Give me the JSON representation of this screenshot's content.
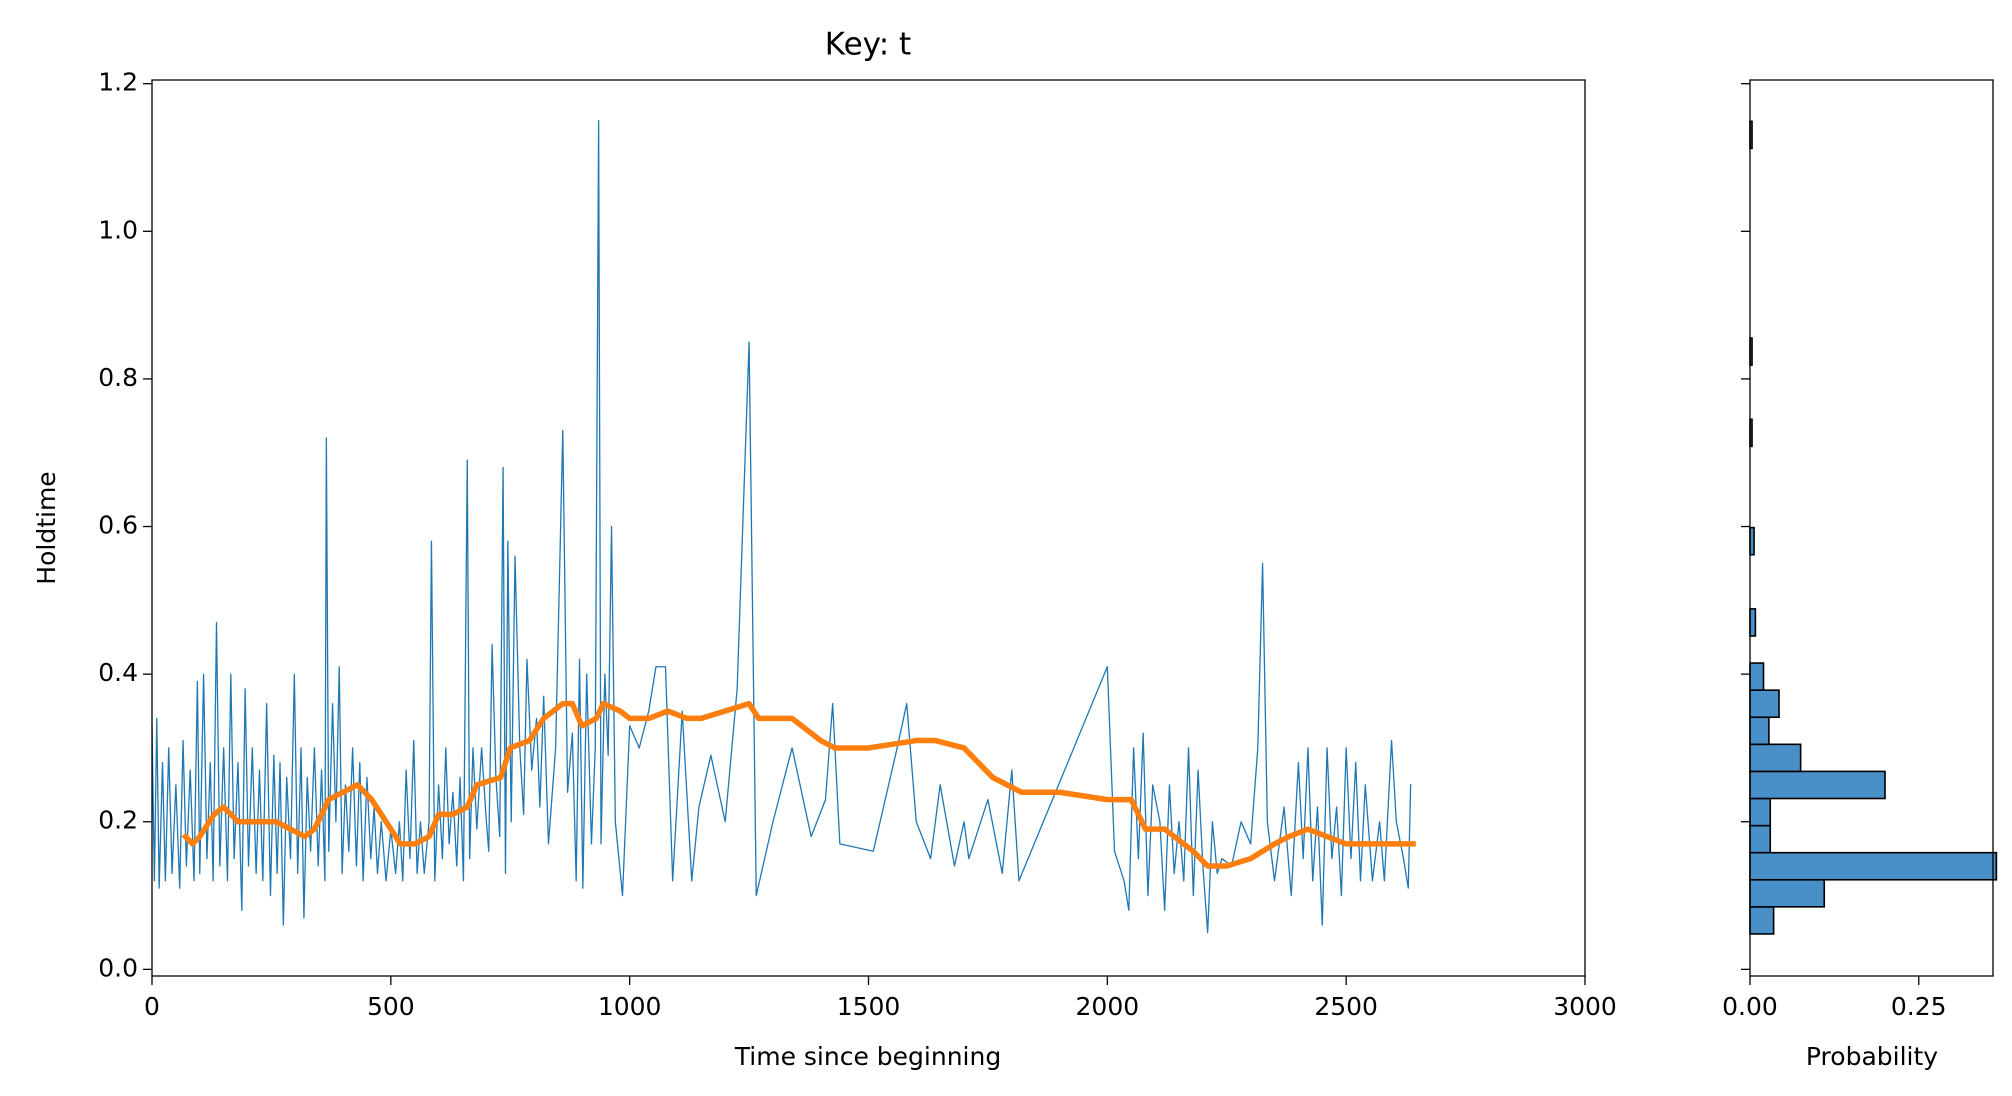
{
  "chart_data": [
    {
      "type": "line",
      "title": "Key: t",
      "xlabel": "Time since beginning",
      "ylabel": "Holdtime",
      "xlim": [
        0,
        3000
      ],
      "xticks": [
        0,
        500,
        1000,
        1500,
        2000,
        2500,
        3000
      ],
      "ylim": [
        -0.009,
        1.205
      ],
      "yticks": [
        {
          "value": 0,
          "label": "0.0"
        },
        0.2,
        0.4,
        0.6,
        0.8,
        {
          "value": 1,
          "label": "1.0"
        },
        1.2
      ],
      "series": [
        {
          "color": "#1f77b4",
          "width": 1.3,
          "x": [
            0,
            5,
            10,
            15,
            22,
            28,
            35,
            42,
            50,
            58,
            65,
            72,
            80,
            88,
            95,
            100,
            108,
            115,
            122,
            128,
            135,
            142,
            150,
            158,
            165,
            172,
            180,
            188,
            195,
            202,
            210,
            218,
            225,
            232,
            240,
            248,
            255,
            262,
            268,
            275,
            282,
            290,
            298,
            305,
            312,
            318,
            325,
            332,
            340,
            348,
            355,
            362,
            365,
            370,
            378,
            385,
            392,
            398,
            405,
            412,
            420,
            428,
            435,
            442,
            450,
            458,
            465,
            472,
            480,
            490,
            500,
            510,
            518,
            525,
            532,
            540,
            548,
            555,
            562,
            570,
            580,
            585,
            592,
            600,
            608,
            615,
            622,
            630,
            638,
            645,
            652,
            660,
            665,
            672,
            680,
            690,
            700,
            705,
            712,
            720,
            728,
            735,
            740,
            745,
            752,
            760,
            770,
            778,
            785,
            795,
            805,
            812,
            820,
            830,
            845,
            860,
            870,
            880,
            888,
            895,
            902,
            910,
            920,
            928,
            935,
            940,
            948,
            955,
            962,
            970,
            985,
            1000,
            1020,
            1040,
            1055,
            1075,
            1090,
            1110,
            1130,
            1145,
            1170,
            1200,
            1225,
            1250,
            1265,
            1300,
            1340,
            1380,
            1410,
            1425,
            1440,
            1510,
            1560,
            1580,
            1600,
            1630,
            1650,
            1680,
            1700,
            1710,
            1750,
            1780,
            1800,
            1815,
            2000,
            2015,
            2035,
            2045,
            2055,
            2065,
            2075,
            2085,
            2095,
            2110,
            2120,
            2130,
            2140,
            2150,
            2160,
            2170,
            2180,
            2190,
            2200,
            2210,
            2220,
            2230,
            2240,
            2260,
            2280,
            2300,
            2315,
            2325,
            2335,
            2350,
            2370,
            2385,
            2400,
            2410,
            2420,
            2430,
            2440,
            2450,
            2460,
            2470,
            2480,
            2490,
            2500,
            2510,
            2520,
            2530,
            2540,
            2555,
            2570,
            2580,
            2595,
            2605,
            2620,
            2630,
            2635
          ],
          "values": [
            0.33,
            0.12,
            0.34,
            0.11,
            0.28,
            0.12,
            0.3,
            0.13,
            0.25,
            0.11,
            0.31,
            0.14,
            0.27,
            0.12,
            0.39,
            0.13,
            0.4,
            0.15,
            0.28,
            0.12,
            0.47,
            0.14,
            0.3,
            0.12,
            0.4,
            0.15,
            0.28,
            0.08,
            0.38,
            0.14,
            0.3,
            0.13,
            0.27,
            0.12,
            0.36,
            0.1,
            0.29,
            0.13,
            0.28,
            0.06,
            0.26,
            0.15,
            0.4,
            0.13,
            0.3,
            0.07,
            0.26,
            0.16,
            0.3,
            0.14,
            0.27,
            0.12,
            0.72,
            0.16,
            0.36,
            0.2,
            0.41,
            0.13,
            0.25,
            0.16,
            0.3,
            0.14,
            0.28,
            0.12,
            0.26,
            0.15,
            0.22,
            0.13,
            0.2,
            0.12,
            0.19,
            0.13,
            0.2,
            0.12,
            0.27,
            0.15,
            0.31,
            0.13,
            0.2,
            0.13,
            0.2,
            0.58,
            0.12,
            0.25,
            0.15,
            0.3,
            0.17,
            0.24,
            0.14,
            0.26,
            0.12,
            0.69,
            0.15,
            0.3,
            0.19,
            0.3,
            0.2,
            0.16,
            0.44,
            0.26,
            0.18,
            0.68,
            0.13,
            0.58,
            0.2,
            0.56,
            0.3,
            0.21,
            0.42,
            0.27,
            0.34,
            0.22,
            0.37,
            0.17,
            0.3,
            0.73,
            0.24,
            0.32,
            0.12,
            0.42,
            0.11,
            0.4,
            0.17,
            0.3,
            1.15,
            0.17,
            0.4,
            0.29,
            0.6,
            0.2,
            0.1,
            0.33,
            0.3,
            0.35,
            0.41,
            0.41,
            0.12,
            0.35,
            0.12,
            0.22,
            0.29,
            0.2,
            0.38,
            0.85,
            0.1,
            0.2,
            0.3,
            0.18,
            0.23,
            0.36,
            0.17,
            0.16,
            0.3,
            0.36,
            0.2,
            0.15,
            0.25,
            0.14,
            0.2,
            0.15,
            0.23,
            0.13,
            0.27,
            0.12,
            0.41,
            0.16,
            0.12,
            0.08,
            0.3,
            0.15,
            0.32,
            0.1,
            0.25,
            0.2,
            0.08,
            0.25,
            0.13,
            0.2,
            0.12,
            0.3,
            0.1,
            0.27,
            0.14,
            0.05,
            0.2,
            0.13,
            0.15,
            0.14,
            0.2,
            0.17,
            0.3,
            0.55,
            0.2,
            0.12,
            0.22,
            0.1,
            0.28,
            0.15,
            0.3,
            0.12,
            0.22,
            0.06,
            0.3,
            0.15,
            0.22,
            0.1,
            0.3,
            0.15,
            0.28,
            0.12,
            0.25,
            0.12,
            0.2,
            0.12,
            0.31,
            0.2,
            0.15,
            0.11,
            0.25
          ]
        },
        {
          "color": "#ff7f0e",
          "width": 5.5,
          "x": [
            70,
            85,
            100,
            130,
            150,
            180,
            200,
            230,
            260,
            290,
            320,
            340,
            370,
            400,
            430,
            460,
            490,
            520,
            550,
            580,
            600,
            630,
            660,
            680,
            730,
            750,
            790,
            820,
            860,
            880,
            900,
            930,
            945,
            980,
            1000,
            1040,
            1080,
            1120,
            1150,
            1200,
            1250,
            1270,
            1340,
            1400,
            1430,
            1500,
            1600,
            1640,
            1700,
            1760,
            1820,
            1900,
            2000,
            2050,
            2080,
            2120,
            2180,
            2210,
            2250,
            2300,
            2350,
            2380,
            2420,
            2460,
            2500,
            2550,
            2600,
            2640
          ],
          "values": [
            0.18,
            0.17,
            0.18,
            0.21,
            0.22,
            0.2,
            0.2,
            0.2,
            0.2,
            0.19,
            0.18,
            0.19,
            0.23,
            0.24,
            0.25,
            0.23,
            0.2,
            0.17,
            0.17,
            0.18,
            0.21,
            0.21,
            0.22,
            0.25,
            0.26,
            0.3,
            0.31,
            0.34,
            0.36,
            0.36,
            0.33,
            0.34,
            0.36,
            0.35,
            0.34,
            0.34,
            0.35,
            0.34,
            0.34,
            0.35,
            0.36,
            0.34,
            0.34,
            0.31,
            0.3,
            0.3,
            0.31,
            0.31,
            0.3,
            0.26,
            0.24,
            0.24,
            0.23,
            0.23,
            0.19,
            0.19,
            0.16,
            0.14,
            0.14,
            0.15,
            0.17,
            0.18,
            0.19,
            0.18,
            0.17,
            0.17,
            0.17,
            0.17
          ]
        }
      ]
    },
    {
      "type": "histogram",
      "orientation": "horizontal",
      "xlabel": "Probability",
      "color": "#4a90c8",
      "edgecolor": "#000000",
      "xlim": [
        0,
        0.36
      ],
      "xticks": [
        {
          "value": 0,
          "label": "0.00"
        },
        {
          "value": 0.25,
          "label": "0.25"
        }
      ],
      "ylim": [
        -0.009,
        1.205
      ],
      "yticks": [
        0,
        0.2,
        0.4,
        0.6,
        0.8,
        1,
        1.2
      ],
      "bins": [
        0.048,
        0.0847,
        0.1214,
        0.1581,
        0.1948,
        0.2315,
        0.2682,
        0.3049,
        0.3416,
        0.3783,
        0.415,
        0.4517,
        0.4884,
        0.5251,
        0.5618,
        0.5985,
        0.6352,
        0.6719,
        0.7086,
        0.7453,
        0.782,
        0.8187,
        0.8554,
        0.8921,
        0.9288,
        0.9655,
        1.0022,
        1.0389,
        1.0756,
        1.1123,
        1.149
      ],
      "values": [
        0.035,
        0.11,
        0.365,
        0.03,
        0.03,
        0.2,
        0.075,
        0.028,
        0.043,
        0.02,
        0,
        0.008,
        0,
        0,
        0.006,
        0,
        0,
        0,
        0.003,
        0,
        0,
        0.003,
        0,
        0,
        0,
        0,
        0,
        0,
        0,
        0.003
      ]
    }
  ]
}
